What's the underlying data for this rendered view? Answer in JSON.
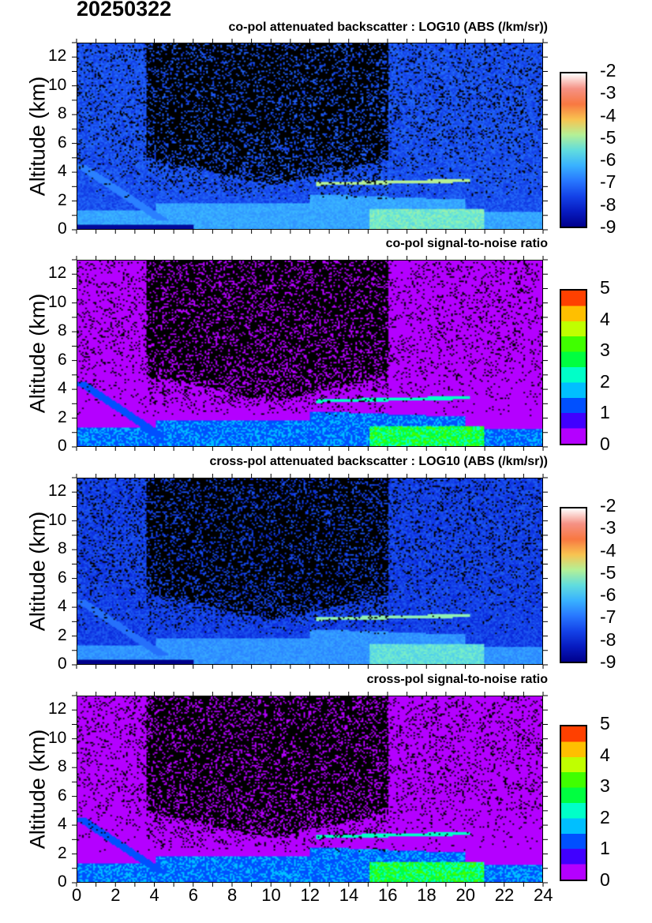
{
  "header": {
    "date": "20250322"
  },
  "chart_data": [
    {
      "type": "heatmap",
      "title": "co-pol attenuated backscatter : LOG10 (ABS (/km/sr))",
      "ylabel": "Altitude (km)",
      "xlim": [
        0,
        24
      ],
      "ylim": [
        0,
        13
      ],
      "yticks": [
        "0",
        "2",
        "4",
        "6",
        "8",
        "10",
        "12"
      ],
      "colorbar": {
        "range": [
          -9,
          -2
        ],
        "ticks": [
          "-2",
          "-3",
          "-4",
          "-5",
          "-6",
          "-7",
          "-8",
          "-9"
        ],
        "colormap": "jet-to-white"
      }
    },
    {
      "type": "heatmap",
      "title": "co-pol signal-to-noise ratio",
      "ylabel": "Altitude (km)",
      "xlim": [
        0,
        24
      ],
      "ylim": [
        0,
        13
      ],
      "yticks": [
        "0",
        "2",
        "4",
        "6",
        "8",
        "10",
        "12"
      ],
      "colorbar": {
        "range": [
          0,
          5
        ],
        "ticks": [
          "5",
          "4",
          "3",
          "2",
          "1",
          "0"
        ],
        "colors": [
          "#b400ff",
          "#4000ff",
          "#0050ff",
          "#00bfff",
          "#00ffc8",
          "#00ff40",
          "#40ff00",
          "#c0ff00",
          "#ffbf00",
          "#ff4000"
        ]
      }
    },
    {
      "type": "heatmap",
      "title": "cross-pol attenuated backscatter : LOG10 (ABS (/km/sr))",
      "ylabel": "Altitude (km)",
      "xlim": [
        0,
        24
      ],
      "ylim": [
        0,
        13
      ],
      "yticks": [
        "0",
        "2",
        "4",
        "6",
        "8",
        "10",
        "12"
      ],
      "colorbar": {
        "range": [
          -9,
          -2
        ],
        "ticks": [
          "-2",
          "-3",
          "-4",
          "-5",
          "-6",
          "-7",
          "-8",
          "-9"
        ],
        "colormap": "jet-to-white"
      }
    },
    {
      "type": "heatmap",
      "title": "cross-pol signal-to-noise ratio",
      "ylabel": "Altitude (km)",
      "xlim": [
        0,
        24
      ],
      "ylim": [
        0,
        13
      ],
      "yticks": [
        "0",
        "2",
        "4",
        "6",
        "8",
        "10",
        "12"
      ],
      "xticks": [
        "0",
        "2",
        "4",
        "6",
        "8",
        "10",
        "12",
        "14",
        "16",
        "18",
        "20",
        "22",
        "24"
      ],
      "colorbar": {
        "range": [
          0,
          5
        ],
        "ticks": [
          "5",
          "4",
          "3",
          "2",
          "1",
          "0"
        ],
        "colors": [
          "#b400ff",
          "#4000ff",
          "#0050ff",
          "#00bfff",
          "#00ffc8",
          "#00ff40",
          "#40ff00",
          "#c0ff00",
          "#ffbf00",
          "#ff4000"
        ]
      }
    }
  ]
}
